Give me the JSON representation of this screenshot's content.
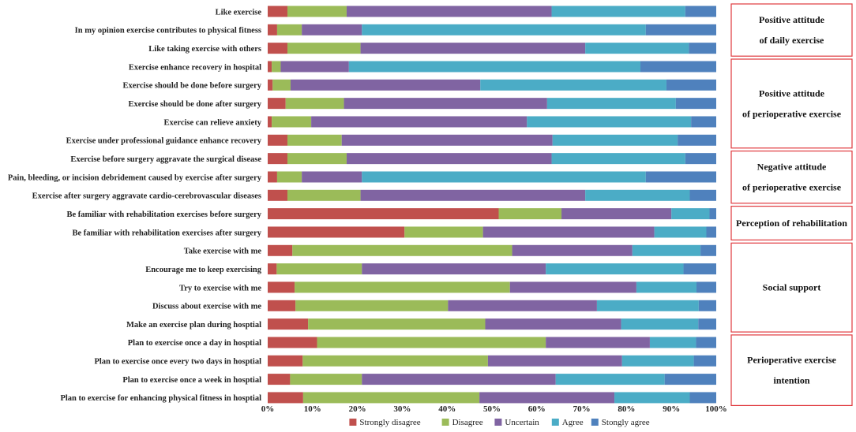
{
  "chart_data": {
    "type": "bar",
    "orientation": "horizontal-stacked-percent",
    "categories": [
      "Like exercise",
      "In my opinion exercise contributes to physical fitness",
      "Like taking exercise with others",
      "Exercise enhance recovery in hospital",
      "Exercise should be done before surgery",
      "Exercise should be done after surgery",
      "Exercise can relieve anxiety",
      "Exercise under professional guidance enhance recovery",
      "Exercise before surgery aggravate the surgical disease",
      "Pain, bleeding, or incision debridement caused by exercise after surgery",
      "Exercise after surgery aggravate cardio-cerebrovascular diseases",
      "Be familiar with rehabilitation exercises before surgery",
      "Be familiar with rehabilitation exercises after surgery",
      "Take exercise with me",
      "Encourage me to keep exercising",
      "Try to exercise with me",
      "Discuss about exercise with me",
      "Make an exercise plan during hosptial",
      "Plan to exercise once a day in hosptial",
      "Plan to exercise once every two days in hosptial",
      "Plan to exercise once a week in hosptial",
      "Plan to exercise for enhancing physical fitness in hosptial"
    ],
    "series": [
      {
        "name": "Strongly disagree",
        "color": "#c0504d",
        "values": [
          4.4,
          2.1,
          4.4,
          0.9,
          1.1,
          4.0,
          0.9,
          4.4,
          4.4,
          2.1,
          4.4,
          51.5,
          30.5,
          5.5,
          2.0,
          6.0,
          6.2,
          9.0,
          11.0,
          7.8,
          5.0,
          7.9
        ]
      },
      {
        "name": "Disagree",
        "color": "#9bbb59",
        "values": [
          13.2,
          5.5,
          16.3,
          2.0,
          4.0,
          13.0,
          8.8,
          12.1,
          13.2,
          5.5,
          16.3,
          14.0,
          17.5,
          49.0,
          19.0,
          48.0,
          34.0,
          39.5,
          51.0,
          41.3,
          16.0,
          39.3
        ]
      },
      {
        "name": "Uncertain",
        "color": "#8064a2",
        "values": [
          45.7,
          13.4,
          50.1,
          15.2,
          42.3,
          45.3,
          48.1,
          47.0,
          45.7,
          13.4,
          50.1,
          24.5,
          38.2,
          26.8,
          41.0,
          28.2,
          33.2,
          30.3,
          23.2,
          29.9,
          43.2,
          30.1
        ]
      },
      {
        "name": "Agree",
        "color": "#4bacc6",
        "values": [
          29.8,
          63.3,
          23.1,
          65.0,
          41.5,
          28.7,
          36.6,
          27.9,
          29.8,
          63.3,
          23.3,
          8.5,
          11.6,
          15.2,
          30.7,
          13.4,
          22.7,
          17.2,
          10.3,
          16.0,
          24.3,
          16.8
        ]
      },
      {
        "name": "Stongly agree",
        "color": "#4f81bd",
        "values": [
          6.9,
          15.7,
          6.1,
          16.9,
          11.1,
          9.0,
          5.6,
          8.6,
          6.9,
          15.7,
          5.9,
          1.5,
          2.2,
          3.5,
          7.3,
          4.4,
          3.9,
          4.0,
          4.5,
          5.0,
          11.5,
          5.9
        ]
      }
    ],
    "xlim": [
      0,
      100
    ],
    "x_ticks": [
      "0%",
      "10%",
      "20%",
      "30%",
      "40%",
      "50%",
      "60%",
      "70%",
      "80%",
      "90%",
      "100%"
    ],
    "legend_position": "bottom-center",
    "groups": [
      {
        "lines": [
          "Positive attitude",
          "of daily exercise"
        ],
        "first": 0,
        "last": 2
      },
      {
        "lines": [
          "Positive attitude",
          "of perioperative exercise"
        ],
        "first": 3,
        "last": 7
      },
      {
        "lines": [
          "Negative attitude",
          "of perioperative exercise"
        ],
        "first": 8,
        "last": 10
      },
      {
        "lines": [
          "Perception of rehabilitation"
        ],
        "first": 11,
        "last": 12
      },
      {
        "lines": [
          "Social support"
        ],
        "first": 13,
        "last": 17
      },
      {
        "lines": [
          "Perioperative exercise",
          "intention"
        ],
        "first": 18,
        "last": 21
      }
    ],
    "group_box_color": "#e0393e"
  }
}
